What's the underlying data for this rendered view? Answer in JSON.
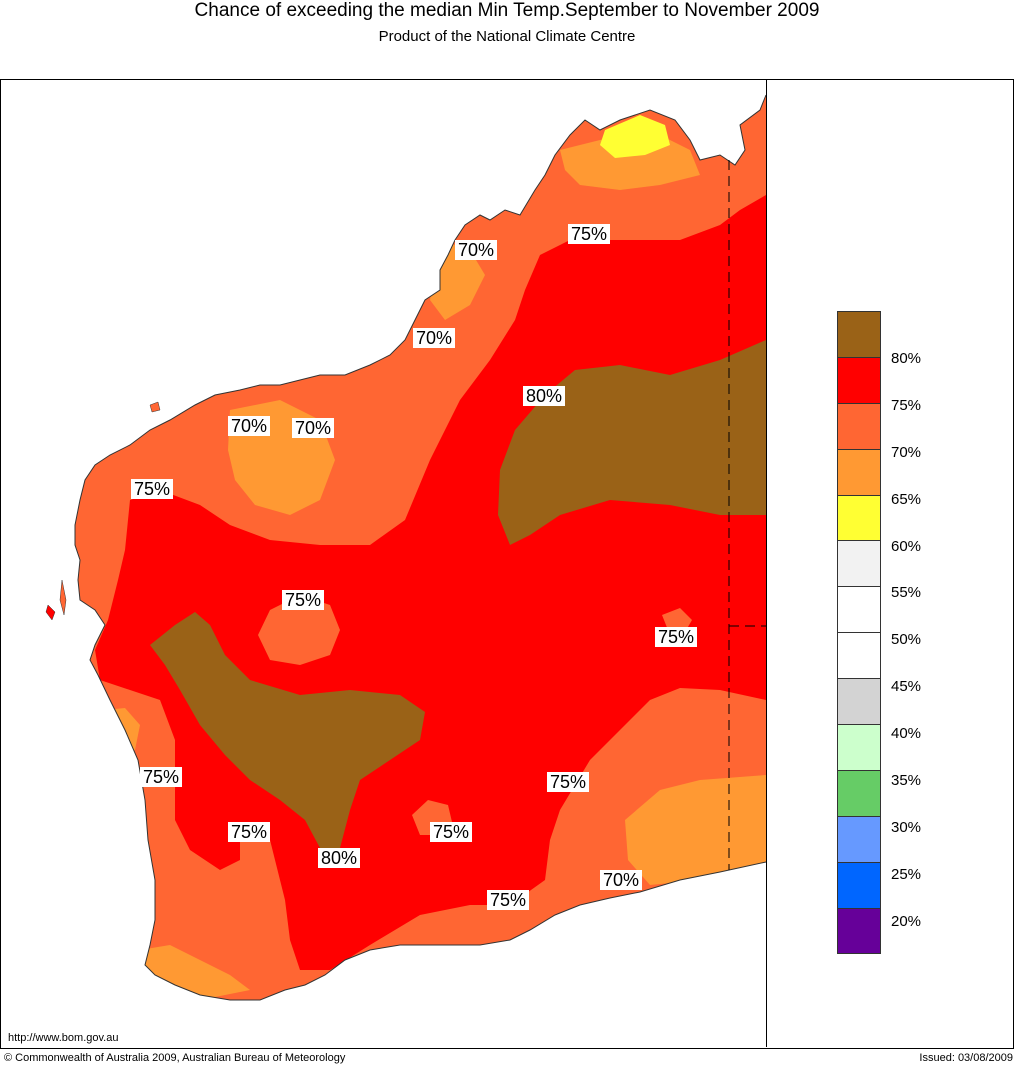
{
  "header": {
    "title": "Chance of exceeding the median Min Temp.September to November 2009",
    "subtitle": "Product of the National Climate Centre"
  },
  "map_labels": [
    {
      "text": "75%"
    },
    {
      "text": "70%"
    },
    {
      "text": "70%"
    },
    {
      "text": "80%"
    },
    {
      "text": "70%"
    },
    {
      "text": "70%"
    },
    {
      "text": "75%"
    },
    {
      "text": "75%"
    },
    {
      "text": "75%"
    },
    {
      "text": "75%"
    },
    {
      "text": "75%"
    },
    {
      "text": "75%"
    },
    {
      "text": "75%"
    },
    {
      "text": "80%"
    },
    {
      "text": "75%"
    },
    {
      "text": "70%"
    }
  ],
  "legend": {
    "colors": [
      "#9a6217",
      "#ff0000",
      "#ff6633",
      "#ff9933",
      "#ffff33",
      "#f2f2f2",
      "#ffffff",
      "#ffffff",
      "#d3d3d3",
      "#ccffcc",
      "#66cc66",
      "#6699ff",
      "#0066ff",
      "#660099"
    ],
    "labels": [
      "80%",
      "75%",
      "70%",
      "65%",
      "60%",
      "55%",
      "50%",
      "45%",
      "40%",
      "35%",
      "30%",
      "25%",
      "20%"
    ]
  },
  "footer": {
    "url": "http://www.bom.gov.au",
    "copyright": "© Commonwealth of Australia 2009, Australian Bureau of Meteorology",
    "issued": "Issued: 03/08/2009"
  }
}
